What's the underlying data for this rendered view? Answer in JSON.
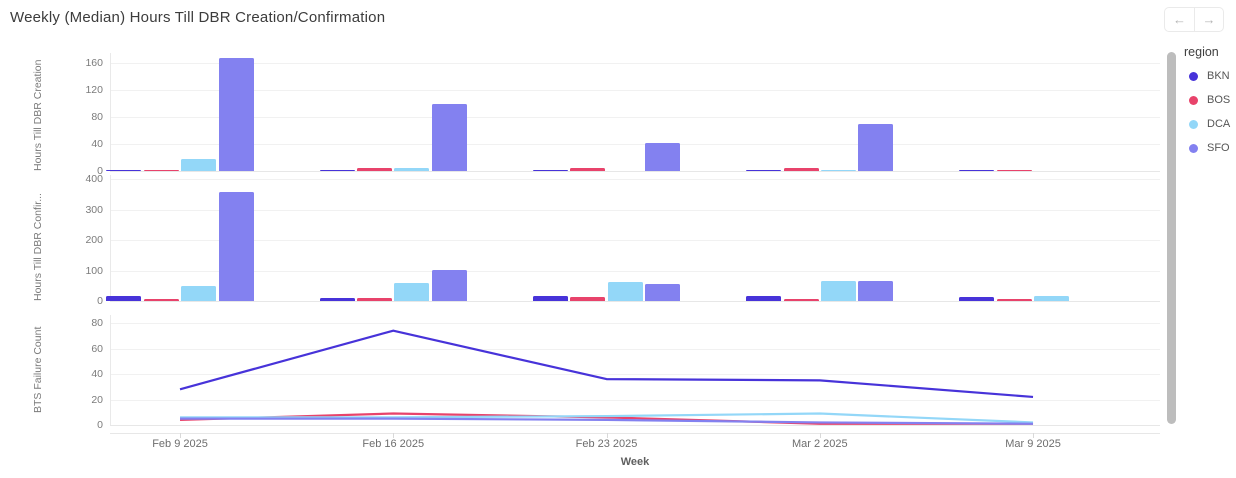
{
  "header": {
    "title": "Weekly (Median) Hours Till DBR Creation/Confirmation",
    "nav": {
      "back_label": "←",
      "forward_label": "→"
    }
  },
  "legend": {
    "title": "region",
    "items": [
      {
        "label": "BKN",
        "color": "#4733d9"
      },
      {
        "label": "BOS",
        "color": "#e8436b"
      },
      {
        "label": "DCA",
        "color": "#93d7f8"
      },
      {
        "label": "SFO",
        "color": "#8381f0"
      }
    ]
  },
  "x_axis": {
    "label": "Week",
    "categories": [
      "Feb 9 2025",
      "Feb 16 2025",
      "Feb 23 2025",
      "Mar 2 2025",
      "Mar 9 2025"
    ]
  },
  "chart_data": [
    {
      "type": "bar",
      "ylabel": "Hours Till DBR Creation",
      "yticks": [
        0,
        40,
        80,
        120,
        160
      ],
      "ylim": [
        0,
        175
      ],
      "grid": true,
      "series": [
        {
          "name": "BKN",
          "values": [
            2,
            1,
            1,
            1,
            2
          ]
        },
        {
          "name": "BOS",
          "values": [
            1,
            4,
            4,
            4,
            2
          ]
        },
        {
          "name": "DCA",
          "values": [
            18,
            4,
            0,
            2,
            0
          ]
        },
        {
          "name": "SFO",
          "values": [
            167,
            100,
            41,
            69,
            0
          ]
        }
      ]
    },
    {
      "type": "bar",
      "ylabel": "Hours Till DBR Confir...",
      "yticks": [
        0,
        100,
        200,
        300,
        400
      ],
      "ylim": [
        0,
        415
      ],
      "grid": true,
      "series": [
        {
          "name": "BKN",
          "values": [
            18,
            10,
            15,
            15,
            13
          ]
        },
        {
          "name": "BOS",
          "values": [
            5,
            10,
            13,
            6,
            5
          ]
        },
        {
          "name": "DCA",
          "values": [
            48,
            58,
            62,
            67,
            18
          ]
        },
        {
          "name": "SFO",
          "values": [
            357,
            102,
            55,
            67,
            0
          ]
        }
      ]
    },
    {
      "type": "line",
      "ylabel": "BTS Failure Count",
      "yticks": [
        0,
        20,
        40,
        60,
        80
      ],
      "ylim": [
        0,
        88
      ],
      "grid": true,
      "series": [
        {
          "name": "BKN",
          "values": [
            28,
            74,
            36,
            35,
            22
          ]
        },
        {
          "name": "BOS",
          "values": [
            4,
            9,
            6,
            1,
            1
          ]
        },
        {
          "name": "DCA",
          "values": [
            6,
            6,
            7,
            9,
            2
          ]
        },
        {
          "name": "SFO",
          "values": [
            5,
            5,
            4,
            2,
            1
          ]
        }
      ]
    }
  ]
}
